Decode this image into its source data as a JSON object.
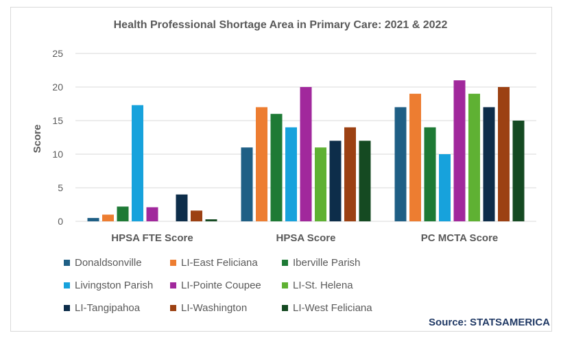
{
  "chart_data": {
    "type": "bar",
    "title": "Health Professional Shortage Area in Primary Care: 2021 & 2022",
    "ylabel": "Score",
    "xlabel": "",
    "ylim": [
      0,
      25
    ],
    "yticks": [
      "0",
      "5",
      "10",
      "15",
      "20",
      "25"
    ],
    "grid": true,
    "legend_position": "bottom",
    "categories": [
      "HPSA FTE Score",
      "HPSA Score",
      "PC MCTA Score"
    ],
    "series": [
      {
        "name": "Donaldsonville",
        "color": "#1f5f85",
        "values": [
          0.5,
          11,
          17
        ]
      },
      {
        "name": "LI-East Feliciana",
        "color": "#ed7d31",
        "values": [
          1,
          17,
          19
        ]
      },
      {
        "name": "Iberville Parish",
        "color": "#1e7a35",
        "values": [
          2.2,
          16,
          14
        ]
      },
      {
        "name": "Livingston Parish",
        "color": "#17a2dc",
        "values": [
          17.3,
          14,
          10
        ]
      },
      {
        "name": "LI-Pointe Coupee",
        "color": "#a1289c",
        "values": [
          2.1,
          20,
          21
        ]
      },
      {
        "name": "LI-St. Helena",
        "color": "#5fb133",
        "values": [
          0,
          11,
          19
        ]
      },
      {
        "name": "LI-Tangipahoa",
        "color": "#0d2d4a",
        "values": [
          4,
          12,
          17
        ]
      },
      {
        "name": "LI-Washington",
        "color": "#9c4113",
        "values": [
          1.6,
          14,
          20
        ]
      },
      {
        "name": "LI-West Feliciana",
        "color": "#154a22",
        "values": [
          0.3,
          12,
          15
        ]
      }
    ]
  },
  "source": "Source: STATSAMERICA"
}
